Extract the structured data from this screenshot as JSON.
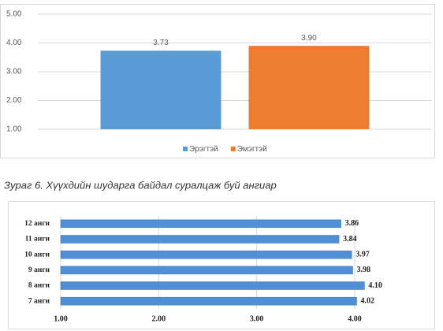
{
  "caption": "Зураг 6. Хүүхдийн шударга байдал суралцаж буй ангиар",
  "chart_data": [
    {
      "type": "bar",
      "categories": [
        null
      ],
      "series": [
        {
          "name": "Эрэгтэй",
          "color": "#5b9bd5",
          "values": [
            3.73
          ],
          "value_labels": [
            "3.73"
          ]
        },
        {
          "name": "Эмэгтэй",
          "color": "#ed7d31",
          "values": [
            3.9
          ],
          "value_labels": [
            "3.90"
          ]
        }
      ],
      "ylim": [
        1,
        5
      ],
      "yticks": [
        {
          "value": 1,
          "label": "1.00"
        },
        {
          "value": 2,
          "label": "2.00"
        },
        {
          "value": 3,
          "label": "3.00"
        },
        {
          "value": 4,
          "label": "4.00"
        },
        {
          "value": 5,
          "label": "5.00"
        }
      ],
      "grid": true,
      "legend": "bottom"
    },
    {
      "type": "hbar",
      "categories": [
        "12 анги",
        "11 анги",
        "10 анги",
        "9 анги",
        "8 анги",
        "7 анги"
      ],
      "values": [
        3.86,
        3.84,
        3.97,
        3.98,
        4.1,
        4.02
      ],
      "value_labels": [
        "3.86",
        "3.84",
        "3.97",
        "3.98",
        "4.10",
        "4.02"
      ],
      "color": "#4f8fd6",
      "xlim": [
        1,
        4
      ],
      "xticks": [
        {
          "value": 1,
          "label": "1.00"
        },
        {
          "value": 2,
          "label": "2.00"
        },
        {
          "value": 3,
          "label": "3.00"
        },
        {
          "value": 4,
          "label": "4.00"
        }
      ],
      "grid": true
    }
  ]
}
